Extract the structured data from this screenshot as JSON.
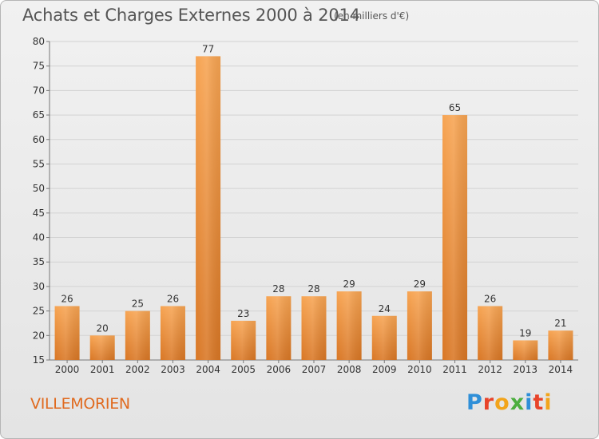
{
  "header": {
    "title": "Achats et Charges Externes 2000 à 2014",
    "unit": "(en milliers d'€)"
  },
  "footer": {
    "commune": "VILLEMORIEN",
    "logo_letters": [
      "P",
      "r",
      "o",
      "x",
      "i",
      "t",
      "i"
    ],
    "logo_colors": [
      "#2f8fd8",
      "#e8442a",
      "#f2a41b",
      "#4cae3f",
      "#2f8fd8",
      "#e8442a",
      "#f2a41b"
    ]
  },
  "chart_data": {
    "type": "bar",
    "title": "Achats et Charges Externes 2000 à 2014",
    "subtitle": "(en milliers d'€)",
    "categories": [
      "2000",
      "2001",
      "2002",
      "2003",
      "2004",
      "2005",
      "2006",
      "2007",
      "2008",
      "2009",
      "2010",
      "2011",
      "2012",
      "2013",
      "2014"
    ],
    "values": [
      26,
      20,
      25,
      26,
      77,
      23,
      28,
      28,
      29,
      24,
      29,
      65,
      26,
      19,
      21
    ],
    "value_labels": [
      "26",
      "20",
      "25",
      "26",
      "77",
      "23",
      "28",
      "28",
      "29",
      "24",
      "29",
      "65",
      "26",
      "19",
      "21"
    ],
    "ylim": [
      15,
      80
    ],
    "yticks": [
      15,
      20,
      25,
      30,
      35,
      40,
      45,
      50,
      55,
      60,
      65,
      70,
      75,
      80
    ],
    "ytick_labels": [
      "15",
      "20",
      "25",
      "30",
      "35",
      "40",
      "45",
      "50",
      "55",
      "60",
      "65",
      "70",
      "75",
      "80"
    ],
    "grid": true,
    "bar_color_top": "#f7a452",
    "bar_color_bottom": "#d97725"
  }
}
